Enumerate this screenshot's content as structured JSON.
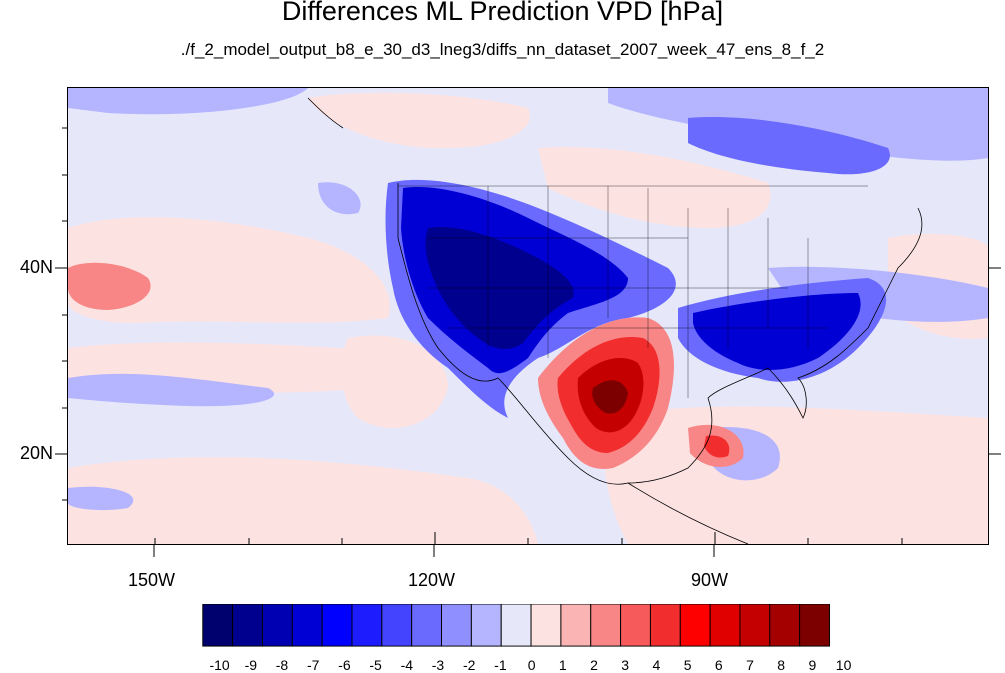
{
  "header": {
    "title": "Differences ML Prediction VPD [hPa]",
    "subtitle": "./f_2_model_output_b8_e_30_d3_lneg3/diffs_nn_dataset_2007_week_47_ens_8_f_2"
  },
  "axes": {
    "lat_labels": [
      "40N",
      "20N"
    ],
    "lon_labels": [
      "150W",
      "120W",
      "90W"
    ]
  },
  "colorbar": {
    "labels": [
      "-10",
      "-9",
      "-8",
      "-7",
      "-6",
      "-5",
      "-4",
      "-3",
      "-2",
      "-1",
      "0",
      "1",
      "2",
      "3",
      "4",
      "5",
      "6",
      "7",
      "8",
      "9",
      "10"
    ],
    "colors": [
      "#00006e",
      "#00008f",
      "#0000b3",
      "#0000d5",
      "#0000ff",
      "#1c1cff",
      "#4444ff",
      "#6a6aff",
      "#8f8fff",
      "#b5b5ff",
      "#e6e8fa",
      "#fde2e2",
      "#fbb4b4",
      "#f88686",
      "#f65a5a",
      "#f22d2d",
      "#ff0000",
      "#e00000",
      "#c40000",
      "#a50000",
      "#7d0000"
    ]
  },
  "map": {
    "projection": "cylindrical equidistant",
    "lon_range": [
      -159,
      -61
    ],
    "lat_range": [
      11,
      59
    ],
    "background_color": "#e6e8fa"
  }
}
